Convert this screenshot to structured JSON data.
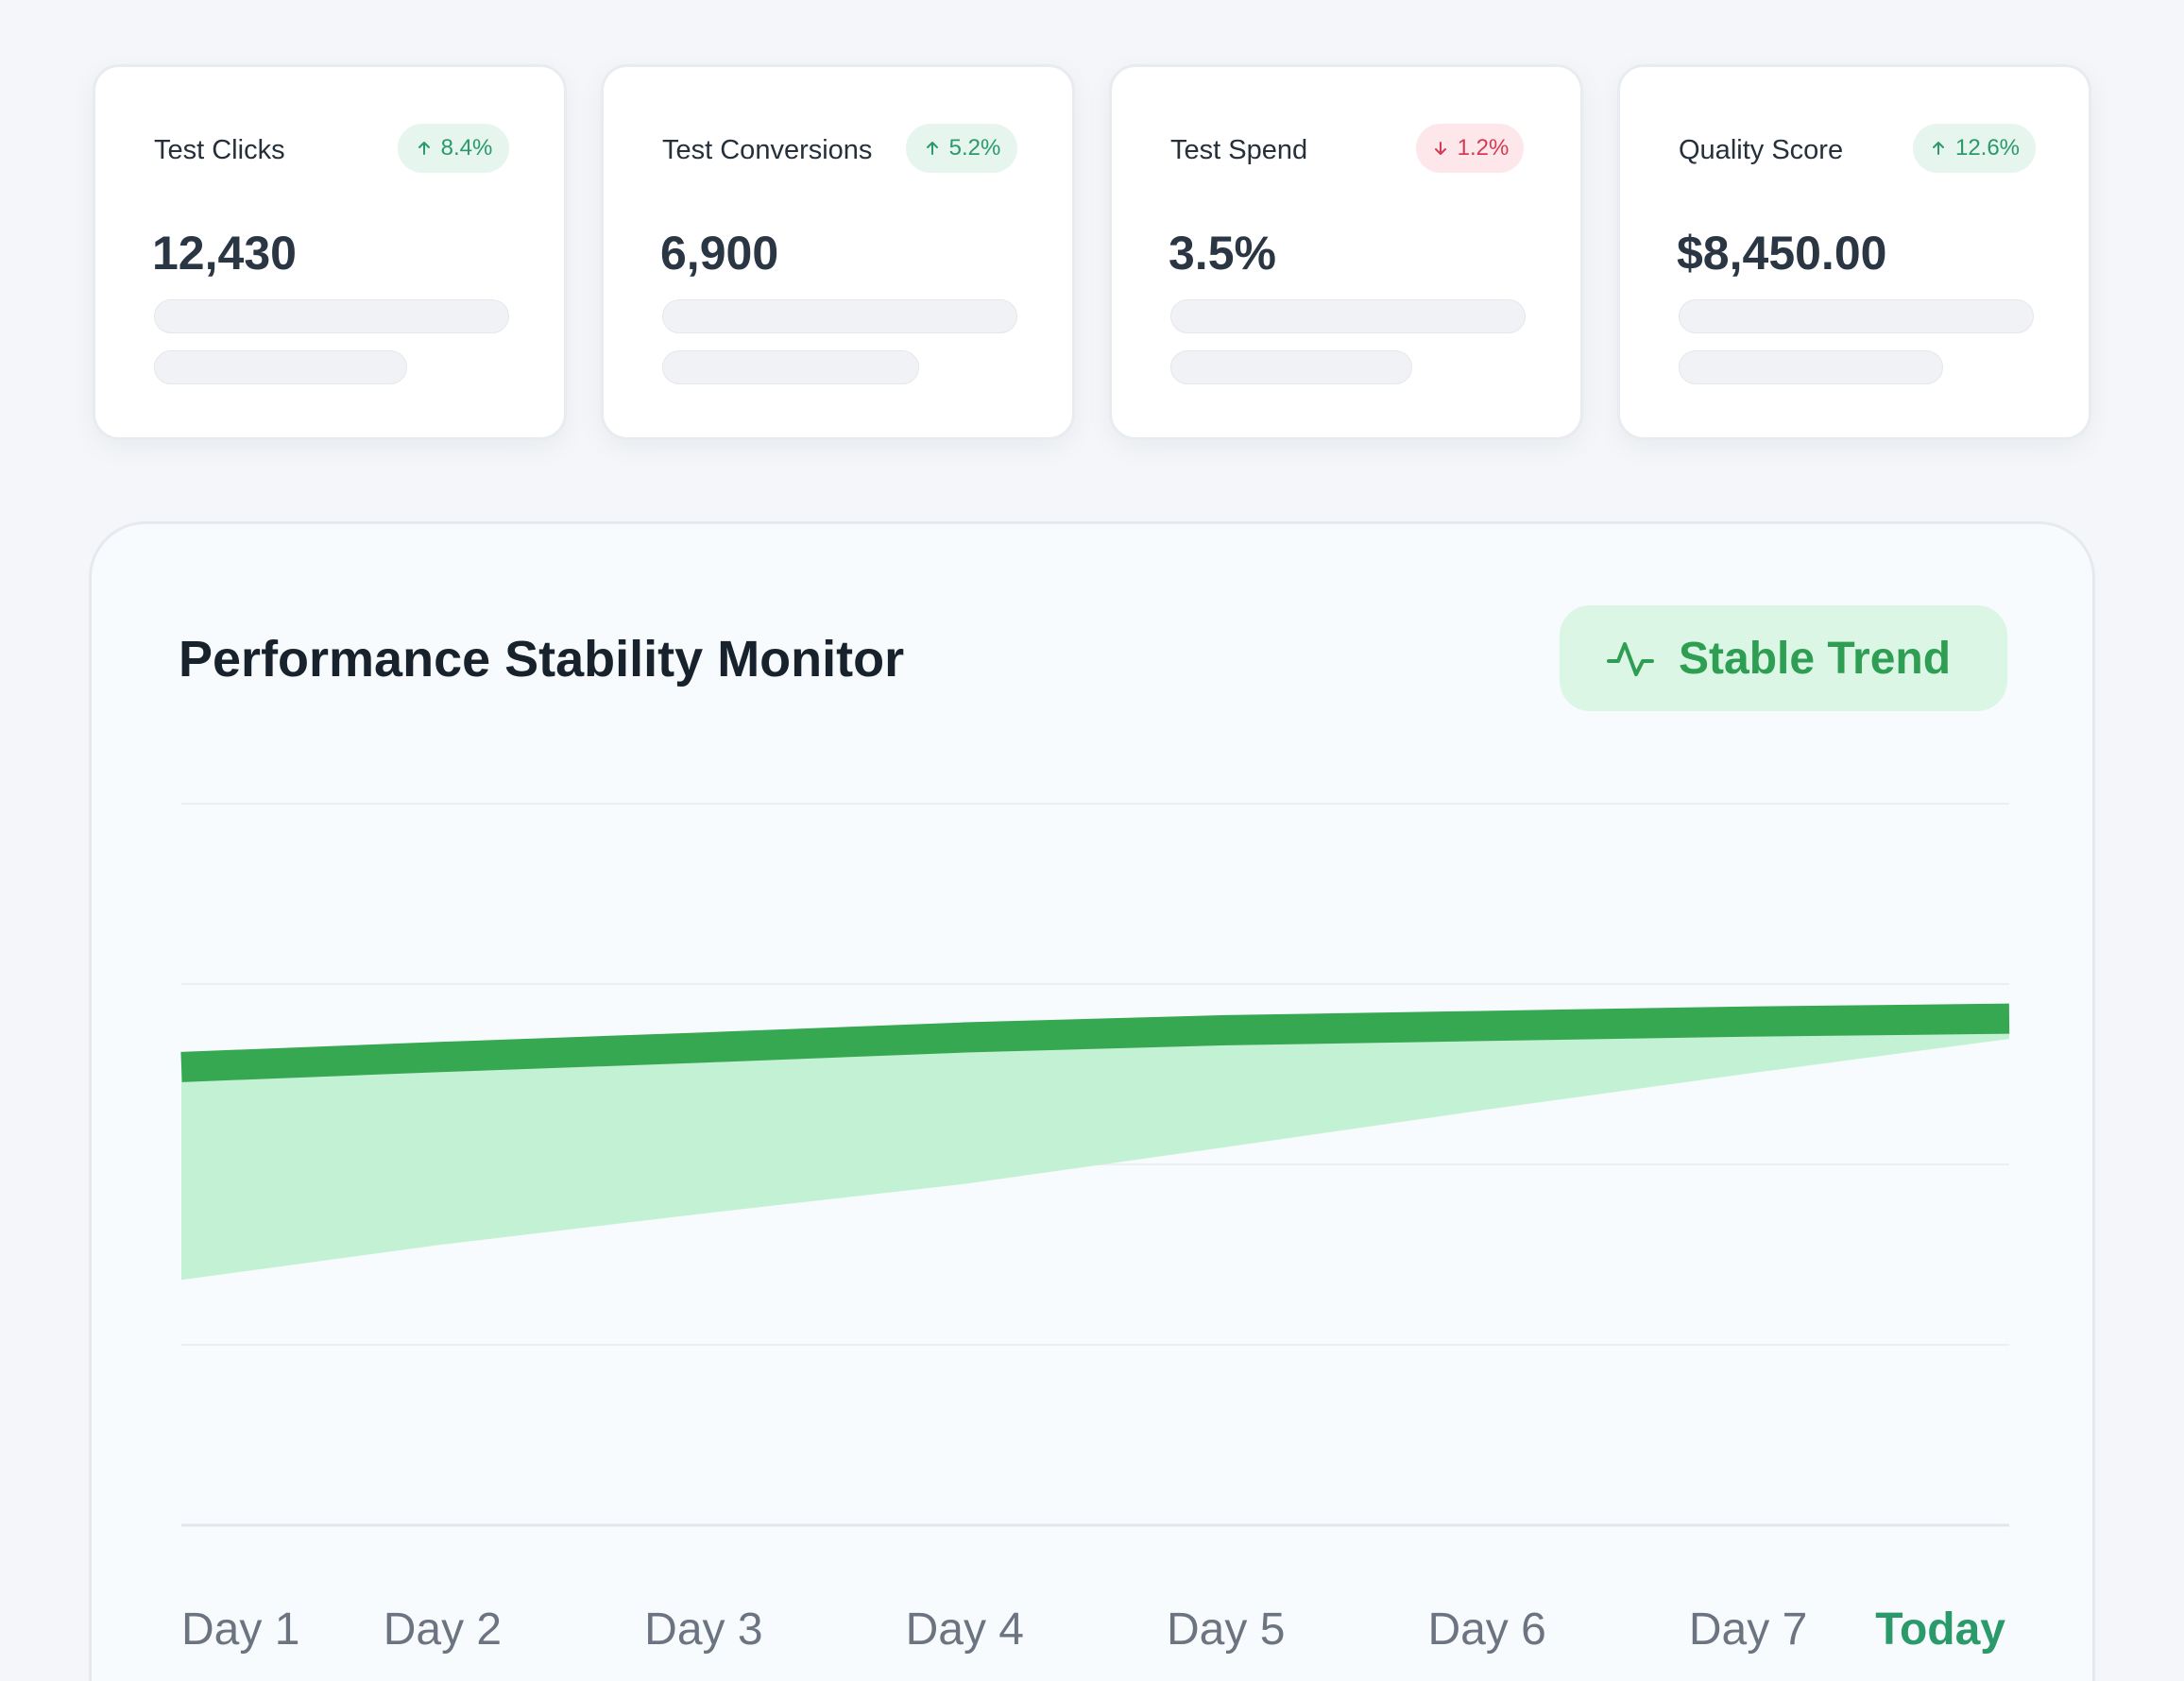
{
  "kpi_cards": [
    {
      "label": "Test Clicks",
      "value": "12,430",
      "change": "8.4%",
      "direction": "up"
    },
    {
      "label": "Test Conversions",
      "value": "6,900",
      "change": "5.2%",
      "direction": "up"
    },
    {
      "label": "Test Spend",
      "value": "3.5%",
      "change": "1.2%",
      "direction": "down"
    },
    {
      "label": "Quality Score",
      "value": "$8,450.00",
      "change": "12.6%",
      "direction": "up"
    }
  ],
  "panel": {
    "title": "Performance Stability Monitor",
    "trend_badge": {
      "label": "Stable Trend",
      "icon": "activity-pulse-icon"
    }
  },
  "chart_data": {
    "type": "area",
    "title": "Performance Stability Monitor",
    "categories": [
      "Day 1",
      "Day 2",
      "Day 3",
      "Day 4",
      "Day 5",
      "Day 6",
      "Day 7",
      "Today"
    ],
    "highlight_category": "Today",
    "series": [
      {
        "values": [
          63.5,
          64.9,
          66.2,
          67.6,
          68.6,
          69.2,
          69.8,
          70.2
        ],
        "style": "line"
      },
      {
        "values": [
          34,
          38.9,
          43.2,
          47.3,
          52.4,
          57.6,
          62.6,
          67.4
        ],
        "style": "area-band"
      }
    ],
    "ylim": [
      0,
      100
    ],
    "grid": true,
    "colors": {
      "line": "#36a852",
      "band": "#c3f1d3",
      "grid": "#eceff2",
      "baseline": "#e2e6ea"
    }
  },
  "colors": {
    "accent_green": "#2a9a6a",
    "positive_bg": "#e6f5ee",
    "negative": "#d63a52",
    "negative_bg": "#fde7ea"
  }
}
